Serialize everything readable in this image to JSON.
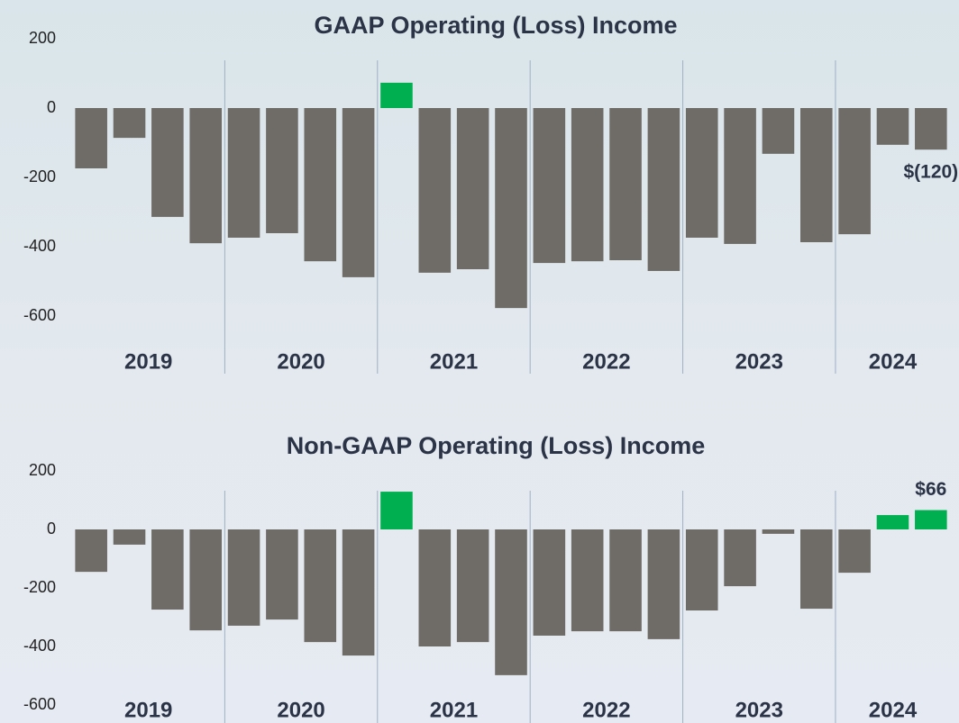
{
  "chart_data": [
    {
      "type": "bar",
      "title": "GAAP Operating (Loss) Income",
      "categories": [
        null,
        null,
        null,
        null,
        null,
        null,
        null,
        null,
        null,
        null,
        null,
        null,
        null,
        null,
        null,
        null,
        null,
        null,
        null,
        null,
        null,
        null,
        null
      ],
      "groups": [
        {
          "label": "2019",
          "size": 4
        },
        {
          "label": "2020",
          "size": 4
        },
        {
          "label": "2021",
          "size": 4
        },
        {
          "label": "2022",
          "size": 4
        },
        {
          "label": "2023",
          "size": 4
        },
        {
          "label": "2024",
          "size": 3
        }
      ],
      "values": [
        -174,
        -86,
        -314,
        -390,
        -374,
        -361,
        -442,
        -488,
        73,
        -475,
        -465,
        -577,
        -447,
        -442,
        -439,
        -470,
        -374,
        -392,
        -132,
        -387,
        -364,
        -106,
        -120
      ],
      "value_labels": [
        null,
        null,
        null,
        null,
        null,
        null,
        null,
        null,
        null,
        null,
        null,
        null,
        null,
        null,
        null,
        null,
        null,
        null,
        null,
        null,
        null,
        null,
        "$(120)"
      ],
      "color": "#6f6b66",
      "positive_color": "#00b050",
      "ylim": [
        -600,
        200
      ],
      "yticks": [
        -600,
        -400,
        -200,
        0,
        200
      ]
    },
    {
      "type": "bar",
      "title": "Non-GAAP Operating (Loss) Income",
      "categories": [
        null,
        null,
        null,
        null,
        null,
        null,
        null,
        null,
        null,
        null,
        null,
        null,
        null,
        null,
        null,
        null,
        null,
        null,
        null,
        null,
        null,
        null,
        null
      ],
      "groups": [
        {
          "label": "2019",
          "size": 4
        },
        {
          "label": "2020",
          "size": 4
        },
        {
          "label": "2021",
          "size": 4
        },
        {
          "label": "2022",
          "size": 4
        },
        {
          "label": "2023",
          "size": 4
        },
        {
          "label": "2024",
          "size": 3
        }
      ],
      "values": [
        -145,
        -52,
        -274,
        -345,
        -329,
        -308,
        -385,
        -431,
        129,
        -400,
        -385,
        -498,
        -363,
        -348,
        -348,
        -375,
        -277,
        -194,
        -15,
        -271,
        -148,
        49,
        66
      ],
      "value_labels": [
        null,
        null,
        null,
        null,
        null,
        null,
        null,
        null,
        null,
        null,
        null,
        null,
        null,
        null,
        null,
        null,
        null,
        null,
        null,
        null,
        null,
        null,
        "$66"
      ],
      "color": "#6f6b66",
      "positive_color": "#00b050",
      "ylim": [
        -600,
        200
      ],
      "yticks": [
        -600,
        -400,
        -200,
        0,
        200
      ]
    }
  ]
}
